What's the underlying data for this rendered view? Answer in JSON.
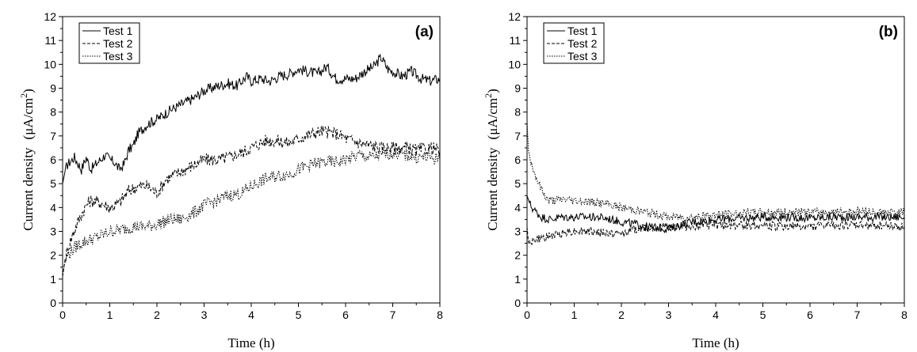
{
  "chart_data": [
    {
      "type": "line",
      "panel_label": "(a)",
      "xlabel": "Time (h)",
      "ylabel": "Current density",
      "ylabel_unit_prefix": "(μA/cm",
      "ylabel_unit_sup": "2",
      "ylabel_unit_suffix": ")",
      "xlim": [
        0,
        8
      ],
      "ylim": [
        0,
        12
      ],
      "x_ticks": [
        0,
        1,
        2,
        3,
        4,
        5,
        6,
        7,
        8
      ],
      "y_ticks": [
        0,
        1,
        2,
        3,
        4,
        5,
        6,
        7,
        8,
        9,
        10,
        11,
        12
      ],
      "grid": false,
      "legend_position": "top-left",
      "series": [
        {
          "name": "Test 1",
          "style": "solid",
          "x": [
            0,
            0.05,
            0.1,
            0.25,
            0.4,
            0.5,
            0.6,
            0.75,
            0.9,
            1.0,
            1.1,
            1.2,
            1.3,
            1.4,
            1.5,
            1.6,
            1.8,
            2.0,
            2.3,
            2.5,
            2.8,
            3.0,
            3.3,
            3.5,
            3.7,
            3.9,
            4.0,
            4.2,
            4.4,
            4.6,
            4.8,
            5.0,
            5.2,
            5.4,
            5.6,
            5.8,
            6.0,
            6.2,
            6.4,
            6.6,
            6.75,
            6.9,
            7.0,
            7.2,
            7.4,
            7.6,
            7.8,
            8.0
          ],
          "y": [
            5.0,
            5.5,
            5.8,
            6.1,
            5.6,
            6.1,
            5.6,
            5.9,
            6.2,
            6.0,
            5.9,
            5.6,
            5.8,
            6.4,
            6.6,
            7.1,
            7.5,
            7.7,
            8.1,
            8.3,
            8.6,
            8.9,
            9.1,
            9.2,
            9.1,
            9.5,
            9.3,
            9.4,
            9.3,
            9.5,
            9.6,
            9.8,
            9.7,
            9.6,
            9.9,
            9.4,
            9.4,
            9.4,
            9.7,
            9.9,
            10.3,
            9.8,
            9.7,
            9.5,
            9.7,
            9.4,
            9.3,
            9.4
          ]
        },
        {
          "name": "Test 2",
          "style": "dashed",
          "x": [
            0,
            0.05,
            0.1,
            0.2,
            0.3,
            0.5,
            0.6,
            0.8,
            1.0,
            1.2,
            1.4,
            1.6,
            1.8,
            2.0,
            2.2,
            2.5,
            2.8,
            3.0,
            3.3,
            3.5,
            3.8,
            4.0,
            4.3,
            4.5,
            4.8,
            5.0,
            5.3,
            5.5,
            5.8,
            6.0,
            6.3,
            6.5,
            6.8,
            7.0,
            7.3,
            7.5,
            7.8,
            8.0
          ],
          "y": [
            1.1,
            1.8,
            2.2,
            2.8,
            3.3,
            4.1,
            4.3,
            4.2,
            4.0,
            4.2,
            4.7,
            4.9,
            4.9,
            4.6,
            5.2,
            5.5,
            5.8,
            6.0,
            6.0,
            6.1,
            6.3,
            6.5,
            6.8,
            6.8,
            6.7,
            6.9,
            7.1,
            7.2,
            7.1,
            6.9,
            6.7,
            6.6,
            6.5,
            6.5,
            6.5,
            6.4,
            6.5,
            6.4
          ]
        },
        {
          "name": "Test 3",
          "style": "dotted",
          "x": [
            0,
            0.05,
            0.1,
            0.3,
            0.5,
            0.8,
            1.0,
            1.3,
            1.5,
            1.8,
            2.0,
            2.3,
            2.5,
            2.8,
            3.0,
            3.3,
            3.5,
            3.8,
            4.0,
            4.3,
            4.5,
            4.8,
            5.0,
            5.3,
            5.5,
            5.8,
            6.0,
            6.3,
            6.5,
            6.8,
            7.0,
            7.3,
            7.5,
            7.8,
            8.0
          ],
          "y": [
            1.2,
            1.7,
            2.0,
            2.4,
            2.6,
            2.8,
            3.0,
            3.1,
            3.2,
            3.2,
            3.3,
            3.5,
            3.5,
            3.8,
            4.1,
            4.3,
            4.5,
            4.6,
            4.9,
            5.2,
            5.3,
            5.4,
            5.6,
            5.8,
            5.9,
            5.9,
            6.0,
            6.2,
            6.1,
            6.2,
            6.3,
            6.2,
            6.1,
            6.1,
            6.0
          ]
        }
      ]
    },
    {
      "type": "line",
      "panel_label": "(b)",
      "xlabel": "Time (h)",
      "ylabel": "Current density",
      "ylabel_unit_prefix": "(μA/cm",
      "ylabel_unit_sup": "2",
      "ylabel_unit_suffix": ")",
      "xlim": [
        0,
        8
      ],
      "ylim": [
        0,
        12
      ],
      "x_ticks": [
        0,
        1,
        2,
        3,
        4,
        5,
        6,
        7,
        8
      ],
      "y_ticks": [
        0,
        1,
        2,
        3,
        4,
        5,
        6,
        7,
        8,
        9,
        10,
        11,
        12
      ],
      "grid": false,
      "legend_position": "top-left",
      "series": [
        {
          "name": "Test 1",
          "style": "solid",
          "x": [
            0,
            0.05,
            0.1,
            0.2,
            0.3,
            0.5,
            0.7,
            1.0,
            1.3,
            1.5,
            1.8,
            2.0,
            2.3,
            2.5,
            2.8,
            3.0,
            3.3,
            3.5,
            4.0,
            4.5,
            5.0,
            5.5,
            6.0,
            6.5,
            7.0,
            7.5,
            8.0
          ],
          "y": [
            4.5,
            4.2,
            4.0,
            3.8,
            3.6,
            3.5,
            3.6,
            3.6,
            3.6,
            3.6,
            3.5,
            3.4,
            3.3,
            3.2,
            3.15,
            3.1,
            3.3,
            3.4,
            3.5,
            3.55,
            3.6,
            3.6,
            3.55,
            3.6,
            3.6,
            3.6,
            3.6
          ]
        },
        {
          "name": "Test 2",
          "style": "dashed",
          "x": [
            0,
            0.03,
            0.05,
            0.1,
            0.3,
            0.5,
            0.7,
            0.9,
            1.0,
            1.3,
            1.5,
            1.8,
            2.0,
            2.3,
            2.5,
            3.0,
            3.5,
            4.0,
            4.5,
            5.0,
            5.5,
            6.0,
            6.5,
            7.0,
            7.5,
            8.0
          ],
          "y": [
            3.2,
            2.5,
            2.6,
            2.6,
            2.7,
            2.8,
            2.9,
            3.0,
            3.0,
            3.0,
            2.95,
            2.9,
            2.9,
            3.1,
            3.15,
            3.2,
            3.2,
            3.25,
            3.25,
            3.25,
            3.2,
            3.2,
            3.25,
            3.25,
            3.25,
            3.2
          ]
        },
        {
          "name": "Test 3",
          "style": "dotted",
          "x": [
            0,
            0.03,
            0.08,
            0.15,
            0.25,
            0.35,
            0.45,
            0.6,
            0.8,
            1.0,
            1.3,
            1.5,
            1.8,
            2.0,
            2.3,
            2.5,
            2.8,
            3.0,
            3.3,
            3.5,
            4.0,
            4.5,
            5.0,
            5.5,
            6.0,
            6.5,
            7.0,
            7.5,
            8.0
          ],
          "y": [
            7.6,
            6.4,
            5.9,
            5.5,
            5.0,
            4.6,
            4.3,
            4.3,
            4.35,
            4.3,
            4.25,
            4.2,
            4.1,
            4.0,
            3.9,
            3.8,
            3.7,
            3.6,
            3.6,
            3.6,
            3.7,
            3.75,
            3.8,
            3.8,
            3.8,
            3.8,
            3.85,
            3.8,
            3.8
          ]
        }
      ]
    }
  ]
}
